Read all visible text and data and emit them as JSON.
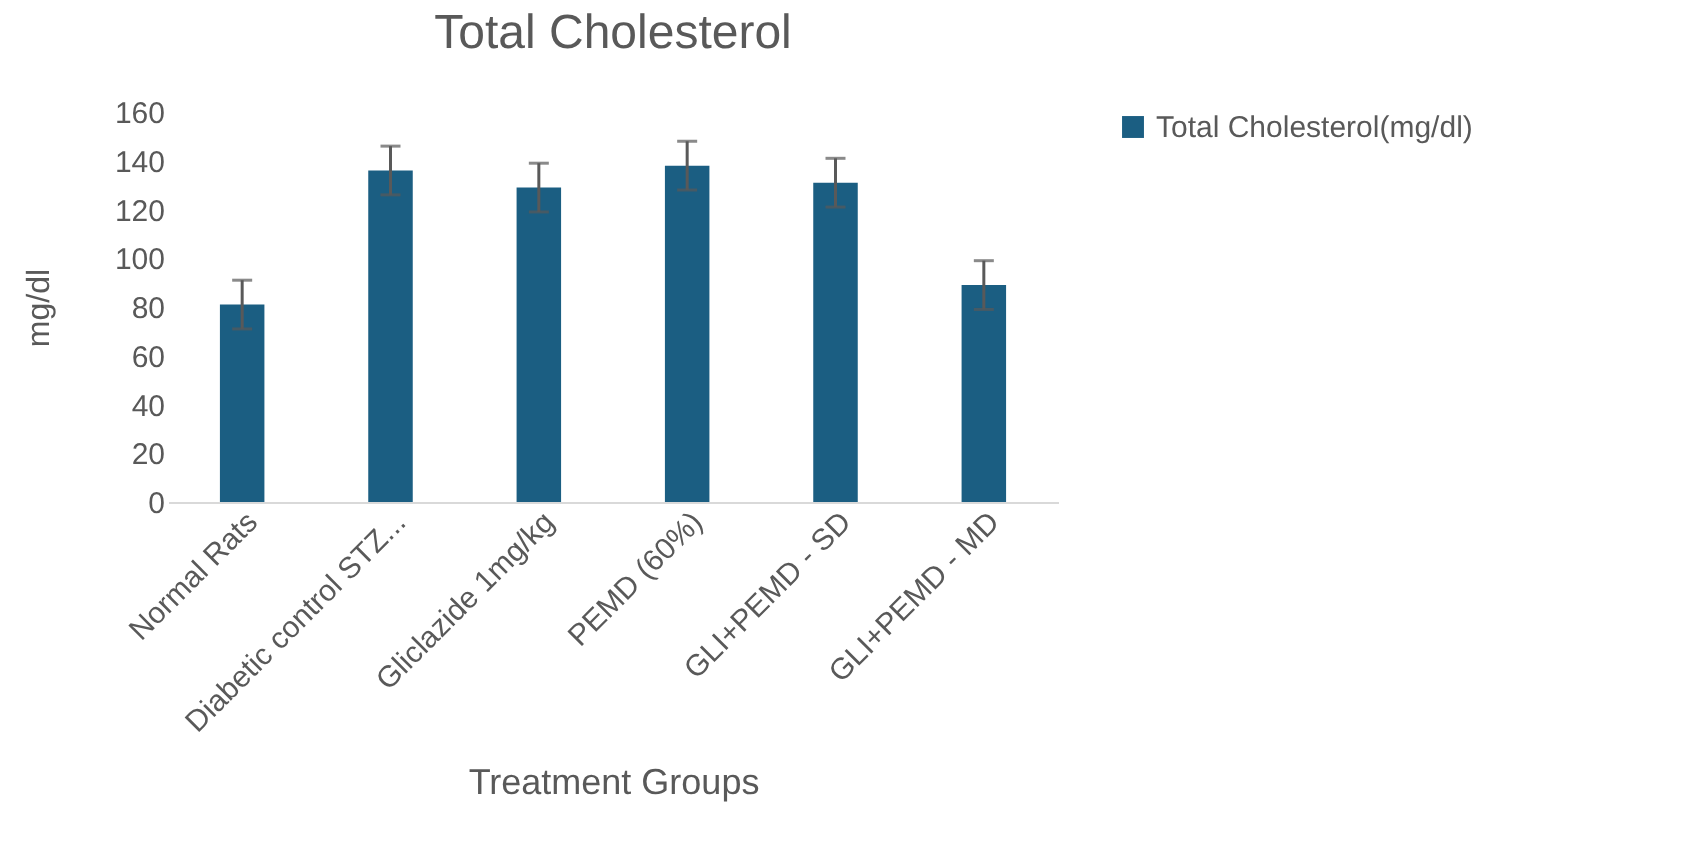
{
  "chart_data": {
    "type": "bar",
    "title": "Total Cholesterol",
    "xlabel": "Treatment Groups",
    "ylabel": "mg/dl",
    "categories": [
      "Normal Rats",
      "Diabetic control STZ...",
      "Gliclazide 1mg/kg",
      "PEMD (60%)",
      "GLI+PEMD - SD",
      "GLI+PEMD - MD"
    ],
    "series": [
      {
        "name": "Total Cholesterol(mg/dl)",
        "color": "#1b5e82",
        "values": [
          81,
          136,
          129,
          138,
          131,
          89
        ],
        "errors": [
          10,
          10,
          10,
          10,
          10,
          10
        ]
      }
    ],
    "ylim": [
      0,
      160
    ],
    "yticks": [
      0,
      20,
      40,
      60,
      80,
      100,
      120,
      140,
      160
    ],
    "grid": false,
    "legend": "right"
  }
}
